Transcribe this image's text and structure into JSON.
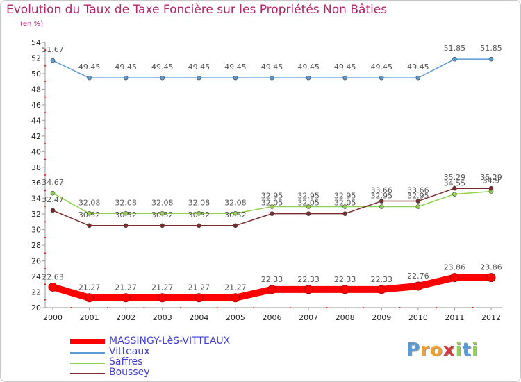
{
  "header": {
    "title": "Evolution du Taux de Taxe Foncière sur les Propriétés Non Bâties",
    "subtitle": "(en %)"
  },
  "colors": {
    "title": "#b4236c",
    "axis": "#999999",
    "grid_dots": "#ff0000",
    "legend_text": "#4040d0"
  },
  "chart_data": {
    "type": "line",
    "title": "Evolution du Taux de Taxe Foncière sur les Propriétés Non Bâties",
    "ylabel": "(en %)",
    "xlabel": "",
    "x": [
      "2000",
      "2001",
      "2002",
      "2003",
      "2004",
      "2005",
      "2006",
      "2007",
      "2008",
      "2009",
      "2010",
      "2011",
      "2012"
    ],
    "ylim": [
      20,
      54
    ],
    "yticks": [
      20,
      22,
      24,
      26,
      28,
      30,
      32,
      34,
      36,
      38,
      40,
      42,
      44,
      46,
      48,
      50,
      52,
      54
    ],
    "legend_placement": "bottom-left",
    "series": [
      {
        "name": "MASSINGY-LèS-VITTEAUX",
        "color": "#ff0000",
        "values": [
          22.63,
          21.27,
          21.27,
          21.27,
          21.27,
          21.27,
          22.33,
          22.33,
          22.33,
          22.33,
          22.76,
          23.86,
          23.86
        ],
        "labels": [
          "22.63",
          "21.27",
          "21.27",
          "21.27",
          "21.27",
          "21.27",
          "22.33",
          "22.33",
          "22.33",
          "22.33",
          "22.76",
          "23.86",
          "23.86"
        ]
      },
      {
        "name": "Vitteaux",
        "color": "#5b9bd5",
        "values": [
          51.67,
          49.45,
          49.45,
          49.45,
          49.45,
          49.45,
          49.45,
          49.45,
          49.45,
          49.45,
          49.45,
          51.85,
          51.85
        ],
        "labels": [
          "51.67",
          "49.45",
          "49.45",
          "49.45",
          "49.45",
          "49.45",
          "49.45",
          "49.45",
          "49.45",
          "49.45",
          "49.45",
          "51.85",
          "51.85"
        ]
      },
      {
        "name": "Saffres",
        "color": "#92d050",
        "values": [
          34.67,
          32.08,
          32.08,
          32.08,
          32.08,
          32.08,
          32.95,
          32.95,
          32.95,
          32.95,
          32.95,
          34.55,
          34.9
        ],
        "labels": [
          "34.67",
          "32.08",
          "32.08",
          "32.08",
          "32.08",
          "32.08",
          "32.95",
          "32.95",
          "32.95",
          "32.95",
          "32.95",
          "34.55",
          "34.9"
        ]
      },
      {
        "name": "Boussey",
        "color": "#7b2d2d",
        "values": [
          32.47,
          30.52,
          30.52,
          30.52,
          30.52,
          30.52,
          32.05,
          32.05,
          32.05,
          33.66,
          33.66,
          35.29,
          35.29
        ],
        "labels": [
          "32.47",
          "30.52",
          "30.52",
          "30.52",
          "30.52",
          "30.52",
          "32.05",
          "32.05",
          "32.05",
          "33.66",
          "33.66",
          "35.29",
          "35.29"
        ]
      }
    ]
  },
  "legend": {
    "items": [
      {
        "label": "MASSINGY-LèS-VITTEAUX",
        "color": "#ff0000"
      },
      {
        "label": "Vitteaux",
        "color": "#5b9bd5"
      },
      {
        "label": "Saffres",
        "color": "#92d050"
      },
      {
        "label": "Boussey",
        "color": "#7b2d2d"
      }
    ]
  },
  "logo": {
    "letters": [
      "P",
      "r",
      "o",
      "x",
      "i",
      "t",
      "i"
    ],
    "colors": [
      "#5b9bd5",
      "#f0a030",
      "#f0a030",
      "#d23c3c",
      "#92d050",
      "#5b9bd5",
      "#92d050"
    ]
  }
}
